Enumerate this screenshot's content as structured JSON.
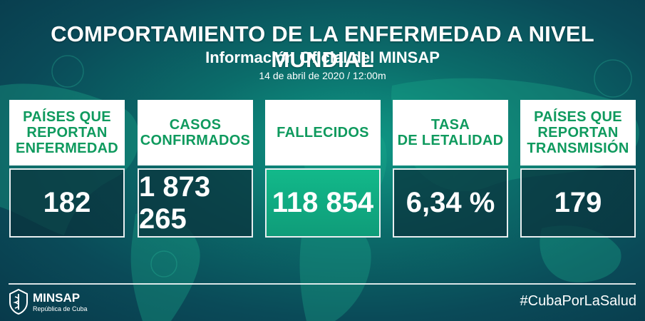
{
  "header": {
    "title": "COMPORTAMIENTO DE LA ENFERMEDAD A NIVEL MUNDIAL",
    "subtitle": "Información Oficial del MINSAP",
    "date": "14 de abril de 2020 / 12:00m"
  },
  "cards": [
    {
      "label_lines": [
        "PAÍSES QUE",
        "REPORTAN",
        "ENFERMEDAD"
      ],
      "value": "182"
    },
    {
      "label_lines": [
        "CASOS",
        "CONFIRMADOS"
      ],
      "value": "1 873 265"
    },
    {
      "label_lines": [
        "FALLECIDOS"
      ],
      "value": "118 854"
    },
    {
      "label_lines": [
        "TASA",
        "DE LETALIDAD"
      ],
      "value": "6,34 %"
    },
    {
      "label_lines": [
        "PAÍSES QUE",
        "REPORTAN",
        "TRANSMISIÓN"
      ],
      "value": "179"
    }
  ],
  "footer": {
    "brand": "MINSAP",
    "brand_sub": "República de Cuba",
    "hashtag": "#CubaPorLaSalud"
  },
  "colors": {
    "label_text": "#0f9a5e",
    "highlight_value_bg": "#12b98a",
    "background": "#0a4a58"
  },
  "icons": [
    "virus-icon",
    "world-map",
    "minsap-logo-icon"
  ]
}
